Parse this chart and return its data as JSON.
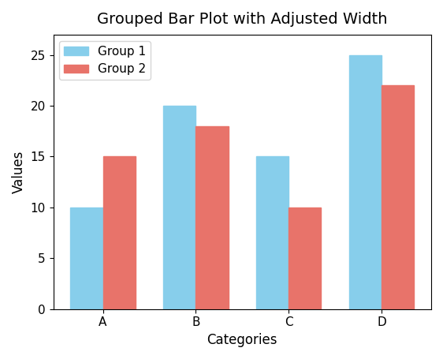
{
  "title": "Grouped Bar Plot with Adjusted Width",
  "xlabel": "Categories",
  "ylabel": "Values",
  "categories": [
    "A",
    "B",
    "C",
    "D"
  ],
  "group1_values": [
    10,
    20,
    15,
    25
  ],
  "group2_values": [
    15,
    18,
    10,
    22
  ],
  "group1_label": "Group 1",
  "group2_label": "Group 2",
  "group1_color": "#87CEEB",
  "group2_color": "#E8736A",
  "bar_width": 0.35,
  "ylim": [
    0,
    27
  ],
  "yticks": [
    0,
    5,
    10,
    15,
    20,
    25
  ],
  "title_fontsize": 14,
  "label_fontsize": 12,
  "tick_fontsize": 11,
  "legend_fontsize": 11
}
